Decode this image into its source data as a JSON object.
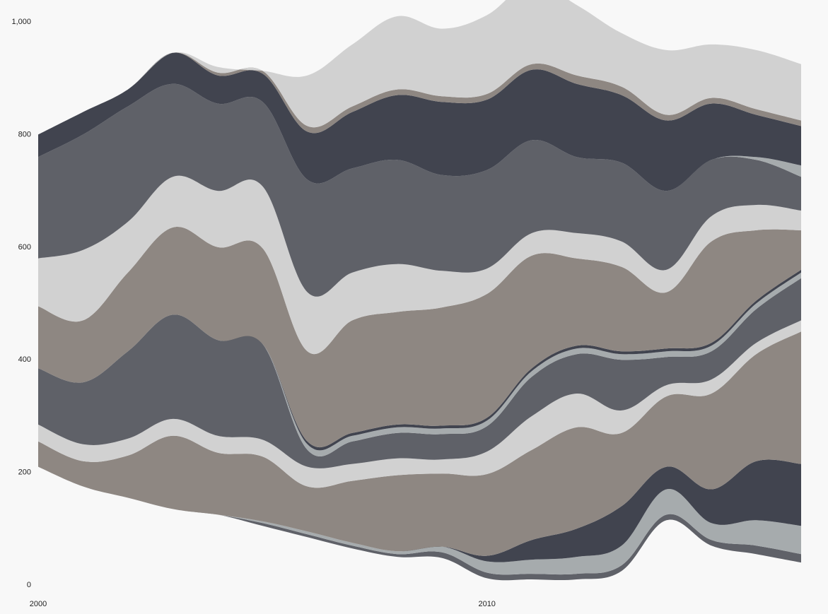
{
  "chart_data": {
    "type": "area",
    "subtype": "stream",
    "title": "",
    "xlabel": "",
    "ylabel": "",
    "x": [
      2000,
      2001,
      2002,
      2003,
      2004,
      2005,
      2006,
      2007,
      2008,
      2009,
      2010,
      2011,
      2012,
      2013,
      2014,
      2015,
      2016,
      2017
    ],
    "x_ticks": [
      "2000",
      "2010"
    ],
    "y_ticks": [
      "0",
      "200",
      "400",
      "600",
      "800",
      "1,000"
    ],
    "ylim": [
      0,
      1000
    ],
    "grid": false,
    "legend": "none",
    "baseline": [
      210,
      175,
      155,
      135,
      125,
      105,
      85,
      65,
      50,
      48,
      12,
      10,
      10,
      25,
      115,
      70,
      55,
      40
    ],
    "series": [
      {
        "color": "#5f6168",
        "values": [
          0,
          0,
          0,
          0,
          0,
          5,
          5,
          5,
          5,
          10,
          10,
          10,
          10,
          10,
          10,
          10,
          15,
          15
        ]
      },
      {
        "color": "#a6abad",
        "values": [
          0,
          0,
          0,
          0,
          0,
          3,
          5,
          5,
          5,
          10,
          20,
          25,
          30,
          35,
          45,
          30,
          45,
          50
        ]
      },
      {
        "color": "#41444f",
        "values": [
          0,
          0,
          0,
          0,
          0,
          0,
          0,
          0,
          0,
          0,
          10,
          35,
          50,
          70,
          40,
          60,
          105,
          110
        ]
      },
      {
        "color": "#8e8782",
        "values": [
          45,
          45,
          75,
          130,
          110,
          115,
          80,
          110,
          135,
          130,
          145,
          160,
          180,
          130,
          125,
          170,
          190,
          235
        ]
      },
      {
        "color": "#d1d1d1",
        "values": [
          30,
          30,
          30,
          30,
          30,
          30,
          35,
          30,
          30,
          25,
          40,
          60,
          60,
          40,
          20,
          25,
          20,
          20
        ]
      },
      {
        "color": "#5f6168",
        "values": [
          100,
          110,
          155,
          185,
          170,
          170,
          30,
          40,
          45,
          45,
          45,
          70,
          70,
          90,
          50,
          50,
          60,
          75
        ]
      },
      {
        "color": "#a6abad",
        "values": [
          0,
          0,
          0,
          0,
          0,
          0,
          10,
          10,
          10,
          10,
          10,
          10,
          10,
          10,
          10,
          10,
          10,
          10
        ]
      },
      {
        "color": "#41444f",
        "values": [
          0,
          0,
          0,
          0,
          0,
          0,
          5,
          5,
          5,
          5,
          5,
          5,
          5,
          5,
          5,
          5,
          5,
          5
        ]
      },
      {
        "color": "#8e8782",
        "values": [
          110,
          110,
          140,
          155,
          165,
          170,
          160,
          200,
          200,
          210,
          220,
          200,
          155,
          150,
          100,
          180,
          125,
          70
        ]
      },
      {
        "color": "#d1d1d1",
        "values": [
          85,
          125,
          90,
          90,
          100,
          110,
          105,
          85,
          85,
          65,
          45,
          40,
          45,
          45,
          40,
          45,
          45,
          35
        ]
      },
      {
        "color": "#5f6168",
        "values": [
          180,
          205,
          205,
          165,
          155,
          150,
          200,
          185,
          185,
          170,
          175,
          165,
          135,
          140,
          140,
          100,
          80,
          60
        ]
      },
      {
        "color": "#a6abad",
        "values": [
          0,
          0,
          0,
          0,
          0,
          0,
          0,
          0,
          0,
          0,
          0,
          0,
          0,
          0,
          0,
          0,
          5,
          20
        ]
      },
      {
        "color": "#41444f",
        "values": [
          40,
          40,
          30,
          55,
          50,
          50,
          85,
          100,
          115,
          130,
          125,
          125,
          130,
          120,
          125,
          100,
          75,
          70
        ]
      },
      {
        "color": "#8e8782",
        "values": [
          0,
          0,
          0,
          0,
          5,
          5,
          10,
          10,
          10,
          10,
          10,
          10,
          15,
          15,
          10,
          10,
          10,
          10
        ]
      },
      {
        "color": "#d1d1d1",
        "values": [
          0,
          0,
          0,
          0,
          10,
          0,
          90,
          110,
          130,
          120,
          140,
          145,
          125,
          95,
          115,
          95,
          105,
          100
        ]
      }
    ]
  }
}
